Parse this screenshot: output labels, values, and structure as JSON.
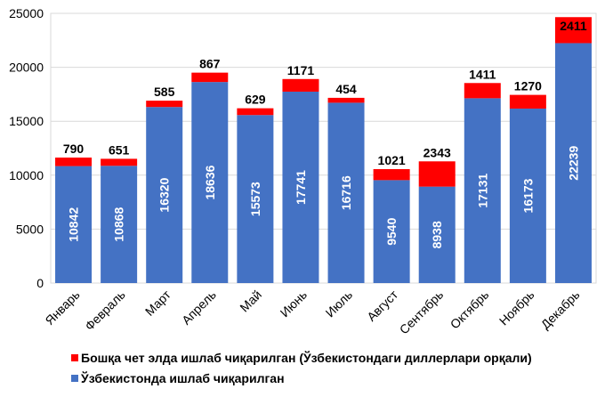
{
  "chart_data": {
    "type": "bar",
    "stacked": true,
    "title": "",
    "xlabel": "",
    "ylabel": "",
    "ylim": [
      0,
      25000
    ],
    "yticks": [
      0,
      5000,
      10000,
      15000,
      20000,
      25000
    ],
    "grid": true,
    "legend_position": "bottom",
    "categories": [
      "Январь",
      "Февраль",
      "Март",
      "Апрель",
      "Май",
      "Июнь",
      "Июль",
      "Август",
      "Сентябрь",
      "Октябрь",
      "Ноябрь",
      "Декабрь"
    ],
    "series": [
      {
        "name": "Ўзбекистонда ишлаб чиқарилган",
        "color": "#4472C4",
        "values": [
          10842,
          10868,
          16320,
          18636,
          15573,
          17741,
          16716,
          9540,
          8938,
          17131,
          16173,
          22239
        ]
      },
      {
        "name": "Бошқа чет элда ишлаб чиқарилган (Ўзбекистондаги диллерлари орқали)",
        "color": "#FF0000",
        "values": [
          790,
          651,
          585,
          867,
          629,
          1171,
          454,
          1021,
          2343,
          1411,
          1270,
          2411
        ]
      }
    ]
  }
}
